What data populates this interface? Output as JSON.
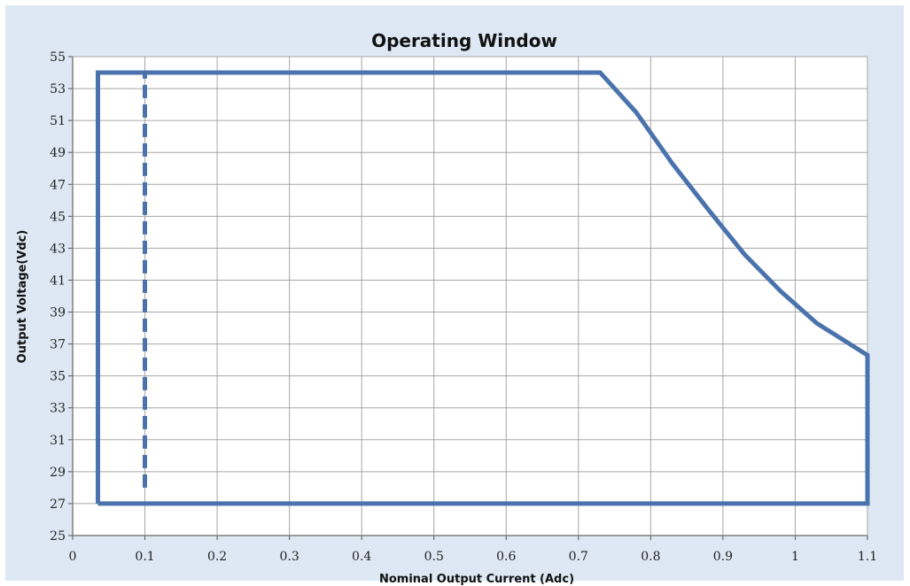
{
  "chart_data": {
    "type": "line",
    "title": "Operating Window",
    "xlabel": "Nominal Output Current (Adc)",
    "ylabel": "Output Voltage(Vdc)",
    "xlim": [
      0,
      1.1
    ],
    "ylim": [
      25,
      55
    ],
    "x_ticks": [
      "0",
      "0.1",
      "0.2",
      "0.3",
      "0.4",
      "0.5",
      "0.6",
      "0.7",
      "0.8",
      "0.9",
      "1",
      "1.1"
    ],
    "y_ticks": [
      "25",
      "27",
      "29",
      "31",
      "33",
      "35",
      "37",
      "39",
      "41",
      "43",
      "45",
      "47",
      "49",
      "51",
      "53",
      "55"
    ],
    "grid": true,
    "legend": "none",
    "series": [
      {
        "style": "solid",
        "color": "#4a73ad",
        "x": [
          0.035,
          0.035,
          0.73,
          0.78,
          0.83,
          0.88,
          0.93,
          0.98,
          1.03,
          1.1,
          1.1,
          0.035
        ],
        "y": [
          27,
          54,
          54,
          51.5,
          48.3,
          45.4,
          42.6,
          40.3,
          38.3,
          36.3,
          27,
          27
        ]
      },
      {
        "style": "dashed",
        "color": "#4a73ad",
        "x": [
          0.1,
          0.1
        ],
        "y": [
          28,
          54
        ]
      }
    ]
  }
}
